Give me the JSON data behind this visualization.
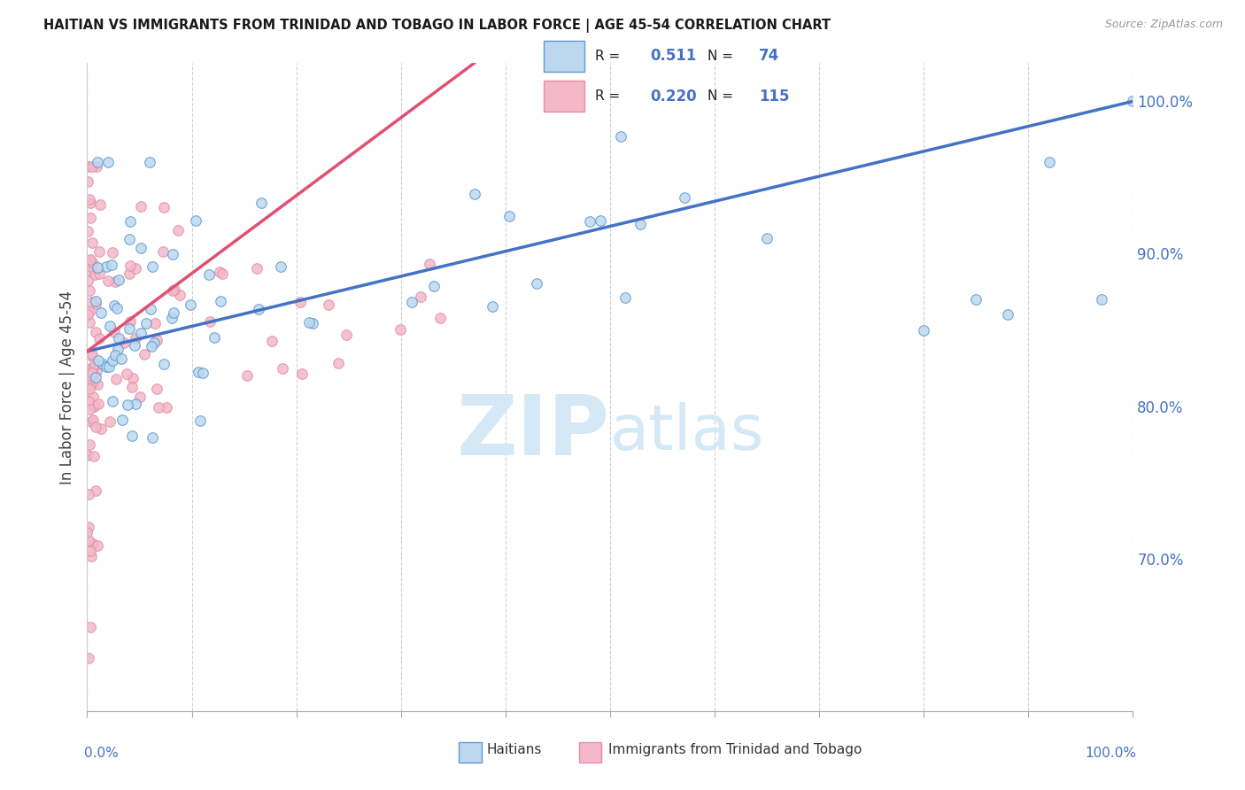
{
  "title": "HAITIAN VS IMMIGRANTS FROM TRINIDAD AND TOBAGO IN LABOR FORCE | AGE 45-54 CORRELATION CHART",
  "source": "Source: ZipAtlas.com",
  "ylabel": "In Labor Force | Age 45-54",
  "legend_label_blue": "Haitians",
  "legend_label_pink": "Immigrants from Trinidad and Tobago",
  "R_blue": "0.511",
  "N_blue": "74",
  "R_pink": "0.220",
  "N_pink": "115",
  "color_blue_fill": "#bdd7ee",
  "color_blue_edge": "#5b9bd5",
  "color_blue_line": "#4472c4",
  "color_pink_fill": "#f4b8c8",
  "color_pink_edge": "#e090a8",
  "color_pink_line": "#e05070",
  "color_blue_text": "#4472c4",
  "watermark_color": "#d5e8f5",
  "right_yticks": [
    0.7,
    0.8,
    0.9,
    1.0
  ],
  "right_yticklabels": [
    "70.0%",
    "80.0%",
    "90.0%",
    "100.0%"
  ],
  "xmin": 0.0,
  "xmax": 1.0,
  "ymin": 0.6,
  "ymax": 1.025,
  "blue_trend_x": [
    0.0,
    1.0
  ],
  "blue_trend_y": [
    0.836,
    1.0
  ],
  "pink_trend_x": [
    0.0,
    0.37
  ],
  "pink_trend_y": [
    0.836,
    1.025
  ]
}
